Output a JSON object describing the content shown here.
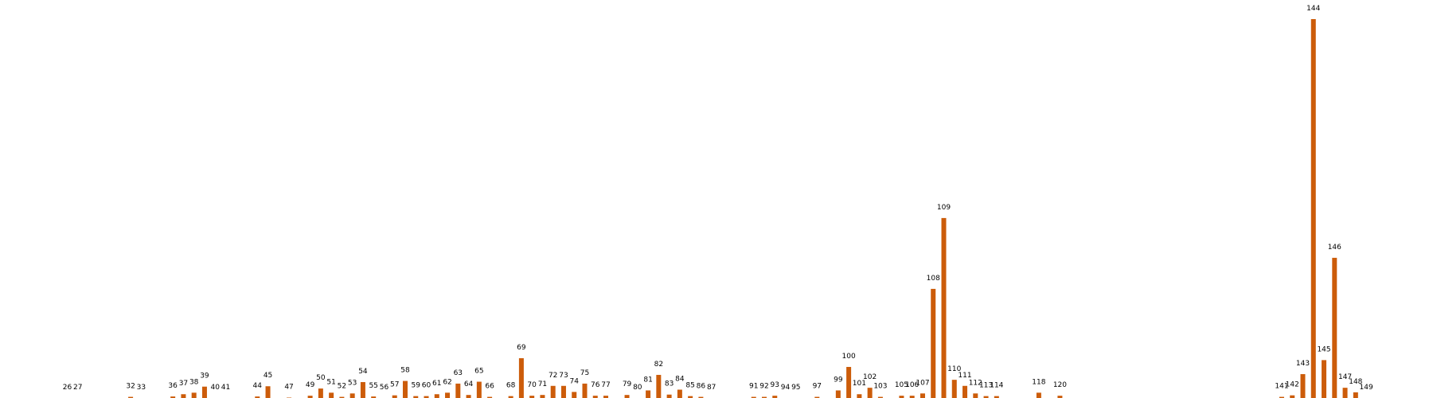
{
  "chart_data": {
    "type": "bar",
    "title": "",
    "xlabel": "",
    "ylabel": "",
    "grid": false,
    "legend": "none",
    "bar_color": "#cc5c0a",
    "ylim": [
      0,
      100
    ],
    "x": [
      26,
      27,
      32,
      33,
      36,
      37,
      38,
      39,
      40,
      41,
      44,
      45,
      47,
      49,
      50,
      51,
      52,
      53,
      54,
      55,
      56,
      57,
      58,
      59,
      60,
      61,
      62,
      63,
      64,
      65,
      66,
      68,
      69,
      70,
      71,
      72,
      73,
      74,
      75,
      76,
      77,
      79,
      80,
      81,
      82,
      83,
      84,
      85,
      86,
      87,
      91,
      92,
      93,
      94,
      95,
      97,
      99,
      100,
      101,
      102,
      103,
      105,
      106,
      107,
      108,
      109,
      110,
      111,
      112,
      113,
      114,
      118,
      120,
      141,
      142,
      143,
      144,
      145,
      146,
      147,
      148,
      149
    ],
    "values": [
      0,
      0,
      0.3,
      0,
      0.4,
      1,
      1.4,
      3,
      0,
      0,
      0.4,
      3.1,
      0.1,
      0.6,
      2.5,
      1.4,
      0.3,
      1.2,
      4.2,
      0.4,
      0,
      0.7,
      4.5,
      0.5,
      0.5,
      1,
      1.4,
      3.8,
      0.8,
      4.3,
      0.3,
      0.5,
      10.5,
      0.6,
      0.8,
      3.2,
      3.2,
      1.6,
      3.8,
      0.6,
      0.6,
      0.8,
      0,
      2,
      6.1,
      0.9,
      2.2,
      0.5,
      0.3,
      0,
      0.3,
      0.3,
      0.6,
      0,
      0,
      0.3,
      2,
      8.2,
      1,
      2.7,
      0.3,
      0.6,
      0.6,
      1.2,
      28.8,
      47.5,
      4.8,
      3.2,
      1.2,
      0.5,
      0.5,
      1.4,
      0.6,
      0.3,
      0.7,
      6.3,
      100,
      10,
      37,
      2.7,
      1.5,
      0
    ]
  }
}
